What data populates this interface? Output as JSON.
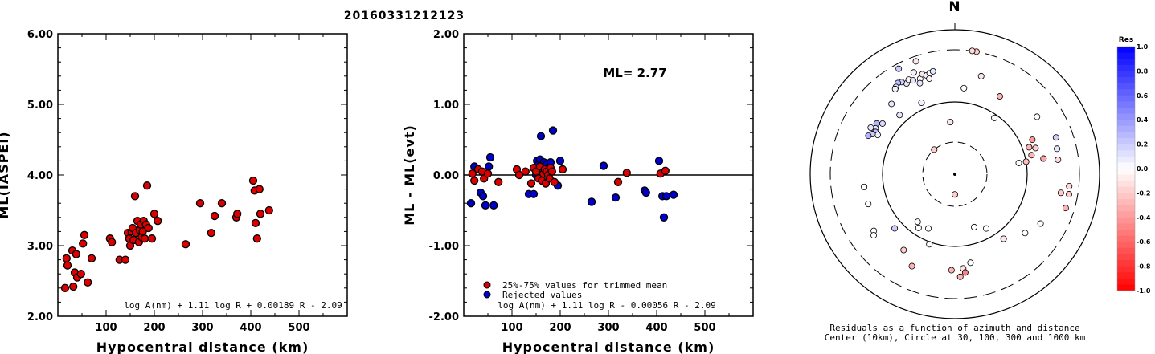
{
  "title": "20160331212123",
  "chart_data": [
    {
      "type": "scatter",
      "name": "panel-magnitude",
      "xlabel": "Hypocentral distance (km)",
      "ylabel": "ML(IASPEI)",
      "xlim": [
        0,
        600
      ],
      "ylim": [
        2.0,
        6.0
      ],
      "xticks": [
        100,
        200,
        300,
        400,
        500
      ],
      "yticks": [
        "2.00",
        "3.00",
        "4.00",
        "5.00",
        "6.00"
      ],
      "formula": "log A(nm) + 1.11 log R + 0.00189 R - 2.09",
      "points": [
        [
          15,
          2.4
        ],
        [
          18,
          2.82
        ],
        [
          20,
          2.72
        ],
        [
          30,
          2.93
        ],
        [
          32,
          2.42
        ],
        [
          35,
          2.62
        ],
        [
          38,
          2.88
        ],
        [
          40,
          2.55
        ],
        [
          48,
          2.6
        ],
        [
          52,
          3.03
        ],
        [
          55,
          3.15
        ],
        [
          62,
          2.48
        ],
        [
          70,
          2.82
        ],
        [
          108,
          3.1
        ],
        [
          112,
          3.05
        ],
        [
          128,
          2.8
        ],
        [
          140,
          2.8
        ],
        [
          145,
          3.18
        ],
        [
          148,
          3.1
        ],
        [
          150,
          3.0
        ],
        [
          153,
          3.2
        ],
        [
          155,
          3.25
        ],
        [
          157,
          3.08
        ],
        [
          160,
          3.7
        ],
        [
          162,
          3.18
        ],
        [
          165,
          3.35
        ],
        [
          168,
          3.05
        ],
        [
          170,
          3.22
        ],
        [
          172,
          3.3
        ],
        [
          174,
          3.12
        ],
        [
          176,
          3.2
        ],
        [
          178,
          3.35
        ],
        [
          180,
          3.1
        ],
        [
          183,
          3.3
        ],
        [
          185,
          3.85
        ],
        [
          188,
          3.25
        ],
        [
          195,
          3.1
        ],
        [
          200,
          3.45
        ],
        [
          207,
          3.35
        ],
        [
          265,
          3.02
        ],
        [
          295,
          3.6
        ],
        [
          318,
          3.18
        ],
        [
          325,
          3.42
        ],
        [
          340,
          3.6
        ],
        [
          370,
          3.4
        ],
        [
          372,
          3.45
        ],
        [
          405,
          3.92
        ],
        [
          408,
          3.78
        ],
        [
          410,
          3.32
        ],
        [
          413,
          3.1
        ],
        [
          418,
          3.8
        ],
        [
          420,
          3.45
        ],
        [
          438,
          3.5
        ]
      ]
    },
    {
      "type": "scatter",
      "name": "panel-residual",
      "xlabel": "Hypocentral distance (km)",
      "ylabel": "ML - ML(evt)",
      "xlim": [
        0,
        600
      ],
      "ylim": [
        -2.0,
        2.0
      ],
      "xticks": [
        100,
        200,
        300,
        400,
        500
      ],
      "yticks": [
        "-2.00",
        "-1.00",
        "0.00",
        "1.00",
        "2.00"
      ],
      "annotation": "ML= 2.77",
      "legend": [
        "25%-75% values for trimmed mean",
        "Rejected values"
      ],
      "formula": "log A(nm) + 1.11 log R - 0.00056 R - 2.09",
      "trimmed": [
        [
          18,
          0.02
        ],
        [
          22,
          -0.08
        ],
        [
          30,
          0.08
        ],
        [
          38,
          0.05
        ],
        [
          42,
          -0.05
        ],
        [
          50,
          0.02
        ],
        [
          72,
          -0.1
        ],
        [
          110,
          0.08
        ],
        [
          115,
          0.0
        ],
        [
          128,
          0.05
        ],
        [
          140,
          -0.12
        ],
        [
          145,
          0.1
        ],
        [
          150,
          0.05
        ],
        [
          155,
          -0.05
        ],
        [
          158,
          0.12
        ],
        [
          162,
          -0.08
        ],
        [
          165,
          0.02
        ],
        [
          168,
          0.08
        ],
        [
          170,
          -0.12
        ],
        [
          172,
          0.05
        ],
        [
          175,
          0.0
        ],
        [
          178,
          -0.05
        ],
        [
          180,
          0.1
        ],
        [
          183,
          0.05
        ],
        [
          188,
          -0.1
        ],
        [
          205,
          0.08
        ],
        [
          320,
          -0.1
        ],
        [
          338,
          0.03
        ],
        [
          408,
          0.02
        ],
        [
          418,
          0.06
        ]
      ],
      "rejected": [
        [
          15,
          -0.4
        ],
        [
          22,
          0.12
        ],
        [
          35,
          -0.25
        ],
        [
          40,
          -0.3
        ],
        [
          45,
          -0.43
        ],
        [
          52,
          0.12
        ],
        [
          55,
          0.25
        ],
        [
          62,
          -0.43
        ],
        [
          135,
          -0.27
        ],
        [
          145,
          -0.27
        ],
        [
          150,
          0.0
        ],
        [
          152,
          0.2
        ],
        [
          155,
          0.15
        ],
        [
          158,
          0.22
        ],
        [
          160,
          0.55
        ],
        [
          163,
          0.12
        ],
        [
          166,
          0.18
        ],
        [
          168,
          0.05
        ],
        [
          172,
          0.15
        ],
        [
          175,
          0.1
        ],
        [
          180,
          0.18
        ],
        [
          183,
          0.05
        ],
        [
          185,
          0.63
        ],
        [
          195,
          -0.15
        ],
        [
          200,
          0.2
        ],
        [
          265,
          -0.38
        ],
        [
          290,
          0.13
        ],
        [
          315,
          -0.32
        ],
        [
          375,
          -0.22
        ],
        [
          378,
          -0.25
        ],
        [
          405,
          0.2
        ],
        [
          412,
          -0.3
        ],
        [
          415,
          -0.6
        ],
        [
          420,
          -0.3
        ],
        [
          435,
          -0.28
        ]
      ]
    },
    {
      "type": "scatter",
      "name": "panel-polar",
      "north_label": "N",
      "caption": [
        "Residuals as a function of azimuth and distance",
        "Center (10km), Circle at 30, 100, 300 and 1000 km"
      ],
      "colorbar_title": "Res",
      "colorbar_ticks": [
        "1.0",
        "0.8",
        "0.6",
        "0.4",
        "0.2",
        "0.0",
        "-0.2",
        "-0.4",
        "-0.6",
        "-0.8",
        "-1.0"
      ],
      "stations": [
        {
          "az": 338,
          "dist": 220,
          "res": 0.05
        },
        {
          "az": 332,
          "dist": 190,
          "res": 0.1
        },
        {
          "az": 330,
          "dist": 205,
          "res": 0.2
        },
        {
          "az": 328,
          "dist": 210,
          "res": 0.25
        },
        {
          "az": 326,
          "dist": 200,
          "res": 0.15
        },
        {
          "az": 325,
          "dist": 195,
          "res": 0.05
        },
        {
          "az": 334,
          "dist": 200,
          "res": -0.05
        },
        {
          "az": 336,
          "dist": 190,
          "res": 0.1
        },
        {
          "az": 340,
          "dist": 185,
          "res": 0.0
        },
        {
          "az": 342,
          "dist": 200,
          "res": -0.1
        },
        {
          "az": 344,
          "dist": 190,
          "res": 0.05
        },
        {
          "az": 346,
          "dist": 195,
          "res": 0.0
        },
        {
          "az": 348,
          "dist": 200,
          "res": 0.1
        },
        {
          "az": 345,
          "dist": 175,
          "res": -0.05
        },
        {
          "az": 339,
          "dist": 170,
          "res": 0.1
        },
        {
          "az": 317,
          "dist": 120,
          "res": 0.1
        },
        {
          "az": 305,
          "dist": 140,
          "res": 0.15
        },
        {
          "az": 303,
          "dist": 155,
          "res": 0.3
        },
        {
          "az": 300,
          "dist": 150,
          "res": 0.1
        },
        {
          "az": 298,
          "dist": 145,
          "res": 0.25
        },
        {
          "az": 297,
          "dist": 135,
          "res": 0.05
        },
        {
          "az": 296,
          "dist": 150,
          "res": 0.2
        },
        {
          "az": 294,
          "dist": 160,
          "res": 0.3
        },
        {
          "az": 299,
          "dist": 165,
          "res": 0.1
        },
        {
          "az": 332,
          "dist": 270,
          "res": 0.2
        },
        {
          "az": 341,
          "dist": 270,
          "res": -0.1
        },
        {
          "az": 10,
          "dist": 300,
          "res": -0.2
        },
        {
          "az": 8,
          "dist": 302,
          "res": -0.15
        },
        {
          "az": 15,
          "dist": 185,
          "res": -0.1
        },
        {
          "az": 6,
          "dist": 135,
          "res": 0.0
        },
        {
          "az": 30,
          "dist": 145,
          "res": -0.3
        },
        {
          "az": 55,
          "dist": 180,
          "res": 0.0
        },
        {
          "az": 66,
          "dist": 130,
          "res": -0.4
        },
        {
          "az": 70,
          "dist": 115,
          "res": -0.3
        },
        {
          "az": 72,
          "dist": 130,
          "res": -0.2
        },
        {
          "az": 76,
          "dist": 115,
          "res": -0.3
        },
        {
          "az": 80,
          "dist": 145,
          "res": -0.35
        },
        {
          "az": 80,
          "dist": 100,
          "res": -0.25
        },
        {
          "az": 70,
          "dist": 210,
          "res": 0.2
        },
        {
          "az": 76,
          "dist": 200,
          "res": 0.1
        },
        {
          "az": 82,
          "dist": 195,
          "res": -0.15
        },
        {
          "az": 100,
          "dist": 210,
          "res": -0.2
        },
        {
          "az": 96,
          "dist": 245,
          "res": -0.15
        },
        {
          "az": 100,
          "dist": 250,
          "res": -0.2
        },
        {
          "az": 107,
          "dist": 250,
          "res": -0.3
        },
        {
          "az": 120,
          "dist": 175,
          "res": 0.0
        },
        {
          "az": 130,
          "dist": 150,
          "res": 0.0
        },
        {
          "az": 143,
          "dist": 120,
          "res": -0.1
        },
        {
          "az": 150,
          "dist": 75,
          "res": 0.0
        },
        {
          "az": 160,
          "dist": 62,
          "res": 0.0
        },
        {
          "az": 170,
          "dist": 145,
          "res": 0.0
        },
        {
          "az": 175,
          "dist": 160,
          "res": -0.1
        },
        {
          "az": 174,
          "dist": 175,
          "res": -0.5
        },
        {
          "az": 177,
          "dist": 190,
          "res": -0.3
        },
        {
          "az": 182,
          "dist": 165,
          "res": -0.3
        },
        {
          "az": 200,
          "dist": 105,
          "res": 0.0
        },
        {
          "az": 206,
          "dist": 70,
          "res": 0.0
        },
        {
          "az": 214,
          "dist": 80,
          "res": 0.0
        },
        {
          "az": 218,
          "dist": 70,
          "res": 0.0
        },
        {
          "az": 228,
          "dist": 120,
          "res": 0.2
        },
        {
          "az": 235,
          "dist": 175,
          "res": 0.0
        },
        {
          "az": 233,
          "dist": 185,
          "res": 0.0
        },
        {
          "az": 214,
          "dist": 150,
          "res": -0.2
        },
        {
          "az": 205,
          "dist": 185,
          "res": -0.3
        },
        {
          "az": 180,
          "dist": 20,
          "res": -0.2
        },
        {
          "az": 320,
          "dist": 30,
          "res": -0.2
        },
        {
          "az": 355,
          "dist": 55,
          "res": -0.1
        },
        {
          "az": 262,
          "dist": 150,
          "res": 0.0
        },
        {
          "az": 251,
          "dist": 150,
          "res": 0.0
        },
        {
          "az": 80,
          "dist": 80,
          "res": 0.0
        },
        {
          "az": 35,
          "dist": 90,
          "res": 0.0
        },
        {
          "az": 335,
          "dist": 115,
          "res": 0.05
        },
        {
          "az": 318,
          "dist": 160,
          "res": 0.1
        }
      ]
    }
  ]
}
